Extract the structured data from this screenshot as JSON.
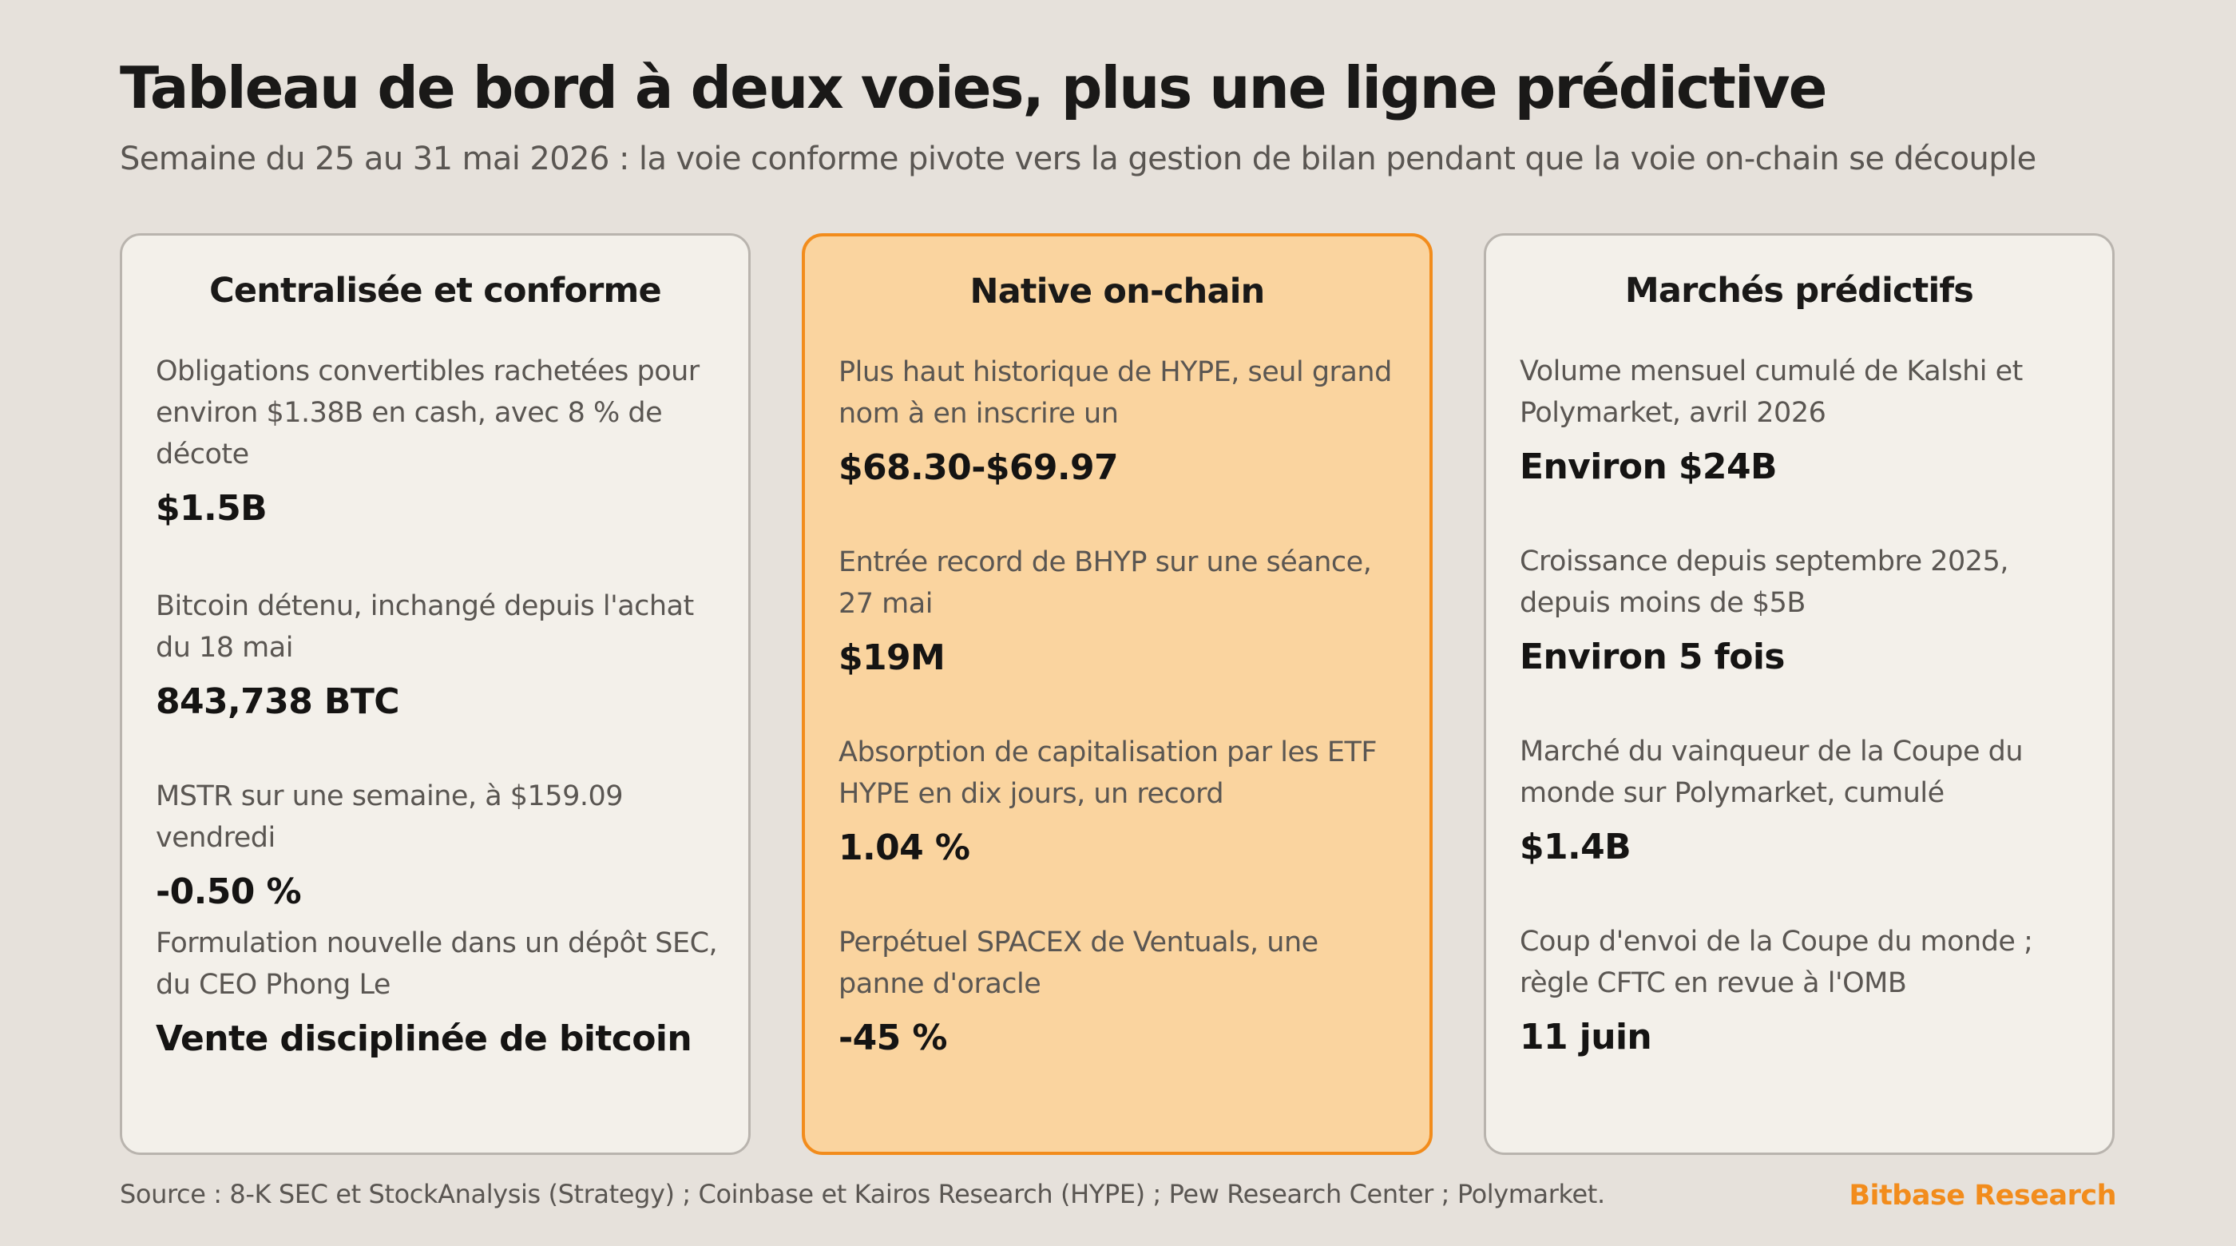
{
  "header": {
    "title": "Tableau de bord à deux voies, plus une ligne prédictive",
    "subtitle": "Semaine du 25 au 31 mai 2026 : la voie conforme pivote vers la gestion de bilan pendant que la voie on-chain se découple"
  },
  "columns": [
    {
      "heading": "Centralisée et conforme",
      "metrics": [
        {
          "label": "Obligations convertibles rachetées pour environ $1.38B en cash, avec 8 % de décote",
          "value": "$1.5B"
        },
        {
          "label": "Bitcoin détenu, inchangé depuis l'achat du 18 mai",
          "value": "843,738 BTC"
        },
        {
          "label": "MSTR sur une semaine, à $159.09 vendredi",
          "value": "-0.50 %"
        },
        {
          "label": "Formulation nouvelle dans un dépôt SEC, du CEO Phong Le",
          "value": "Vente disciplinée de bitcoin"
        }
      ]
    },
    {
      "heading": "Native on-chain",
      "metrics": [
        {
          "label": "Plus haut historique de HYPE, seul grand nom à en inscrire un",
          "value": "$68.30-$69.97"
        },
        {
          "label": "Entrée record de BHYP sur une séance, 27 mai",
          "value": "$19M"
        },
        {
          "label": "Absorption de capitalisation par les ETF HYPE en dix jours, un record",
          "value": "1.04 %"
        },
        {
          "label": "Perpétuel SPACEX de Ventuals, une panne d'oracle",
          "value": "-45 %"
        }
      ]
    },
    {
      "heading": "Marchés prédictifs",
      "metrics": [
        {
          "label": "Volume mensuel cumulé de Kalshi et Polymarket, avril 2026",
          "value": "Environ $24B"
        },
        {
          "label": "Croissance depuis septembre 2025, depuis moins de $5B",
          "value": "Environ 5 fois"
        },
        {
          "label": "Marché du vainqueur de la Coupe du monde sur Polymarket, cumulé",
          "value": "$1.4B"
        },
        {
          "label": "Coup d'envoi de la Coupe du monde ; règle CFTC en revue à l'OMB",
          "value": "11 juin"
        }
      ]
    }
  ],
  "footer": {
    "source": "Source : 8-K SEC et StockAnalysis (Strategy) ; Coinbase et Kairos Research (HYPE) ; Pew Research Center ; Polymarket.",
    "brand": "Bitbase Research"
  },
  "colors": {
    "background": "#e6e1db",
    "card": "#f3f0ea",
    "highlight_card": "#fad49f",
    "accent": "#f28c1c"
  }
}
